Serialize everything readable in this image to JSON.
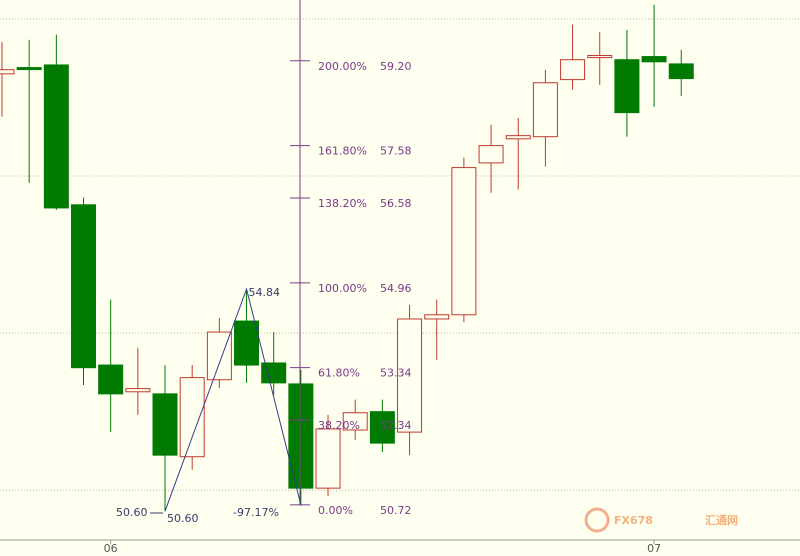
{
  "chart_data": {
    "type": "candlestick",
    "categories": [
      null,
      null,
      null,
      null,
      "06",
      null,
      null,
      null,
      null,
      null,
      null,
      null,
      null,
      null,
      null,
      null,
      null,
      null,
      null,
      null,
      null,
      null,
      null,
      null,
      "07",
      null
    ],
    "candles": [
      {
        "open": 58.95,
        "high": 59.56,
        "low": 58.13,
        "close": 59.03
      },
      {
        "open": 59.07,
        "high": 59.6,
        "low": 56.87,
        "close": 59.05
      },
      {
        "open": 59.12,
        "high": 59.7,
        "low": 56.35,
        "close": 56.39
      },
      {
        "open": 56.45,
        "high": 56.59,
        "low": 53.01,
        "close": 53.34
      },
      {
        "open": 53.39,
        "high": 54.64,
        "low": 52.11,
        "close": 52.84
      },
      {
        "open": 52.88,
        "high": 53.72,
        "low": 52.44,
        "close": 52.94
      },
      {
        "open": 52.84,
        "high": 53.39,
        "low": 50.6,
        "close": 51.67
      },
      {
        "open": 51.64,
        "high": 53.39,
        "low": 51.39,
        "close": 53.15
      },
      {
        "open": 53.11,
        "high": 54.29,
        "low": 52.95,
        "close": 54.02
      },
      {
        "open": 54.23,
        "high": 54.84,
        "low": 53.05,
        "close": 53.39
      },
      {
        "open": 53.43,
        "high": 54.02,
        "low": 52.82,
        "close": 53.05
      },
      {
        "open": 53.03,
        "high": 53.3,
        "low": 50.72,
        "close": 51.04
      },
      {
        "open": 51.04,
        "high": 52.44,
        "low": 50.89,
        "close": 52.17
      },
      {
        "open": 52.15,
        "high": 52.73,
        "low": 51.96,
        "close": 52.48
      },
      {
        "open": 52.5,
        "high": 52.73,
        "low": 51.73,
        "close": 51.9
      },
      {
        "open": 52.11,
        "high": 54.54,
        "low": 51.67,
        "close": 54.27
      },
      {
        "open": 54.27,
        "high": 54.64,
        "low": 53.49,
        "close": 54.35
      },
      {
        "open": 54.35,
        "high": 57.35,
        "low": 54.21,
        "close": 57.16
      },
      {
        "open": 57.25,
        "high": 57.98,
        "low": 56.68,
        "close": 57.58
      },
      {
        "open": 57.71,
        "high": 58.11,
        "low": 56.74,
        "close": 57.77
      },
      {
        "open": 57.75,
        "high": 59.03,
        "low": 57.18,
        "close": 58.78
      },
      {
        "open": 58.84,
        "high": 59.89,
        "low": 58.65,
        "close": 59.22
      },
      {
        "open": 59.26,
        "high": 59.75,
        "low": 58.74,
        "close": 59.3
      },
      {
        "open": 59.22,
        "high": 59.79,
        "low": 57.75,
        "close": 58.21
      },
      {
        "open": 59.28,
        "high": 60.27,
        "low": 58.32,
        "close": 59.18
      },
      {
        "open": 59.14,
        "high": 59.41,
        "low": 58.53,
        "close": 58.86
      }
    ],
    "up_color": "#c0392b",
    "down_color": "#007a00",
    "ylim": [
      50.05,
      60.36
    ],
    "yticks": [
      51,
      54,
      57,
      60
    ],
    "grid": true,
    "fibonacci": {
      "color": "#7a3a8a",
      "levels": [
        200,
        161.8,
        138.2,
        100,
        61.8,
        38.2,
        0
      ],
      "level_labels": [
        "200.00%",
        "161.80%",
        "138.20%",
        "100.00%",
        "61.80%",
        "38.20%",
        "0.00%"
      ],
      "prices": [
        59.2,
        57.58,
        56.58,
        54.96,
        53.34,
        52.34,
        50.72
      ],
      "price_labels": [
        "59.20",
        "57.58",
        "56.58",
        "54.96",
        "53.34",
        "52.34",
        "50.72"
      ]
    },
    "zigzag": {
      "indices": [
        6,
        9,
        11
      ],
      "values": [
        50.6,
        54.84,
        50.72
      ],
      "value_labels": [
        "50.60",
        "54.84",
        null
      ],
      "start_label": "50.60",
      "retracement": -97.17,
      "retracement_label": "-97.17%"
    },
    "watermark": {
      "brand": "FX678",
      "name": "汇通网"
    }
  }
}
